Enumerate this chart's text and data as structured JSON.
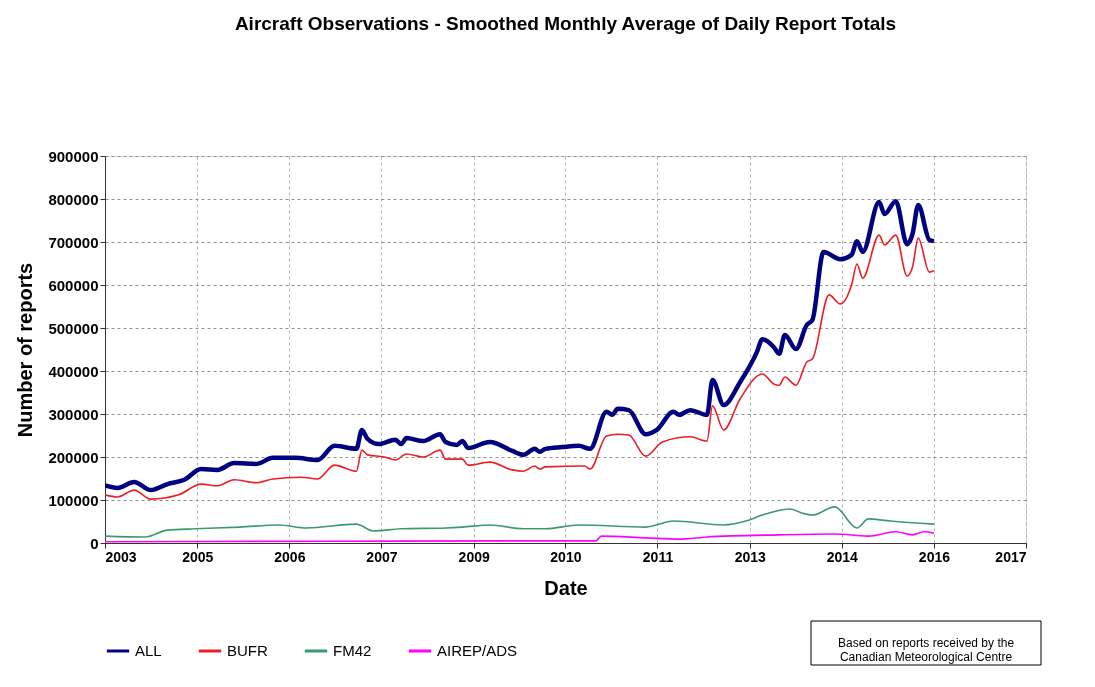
{
  "chart_data": {
    "type": "line",
    "title": "Aircraft Observations - Smoothed Monthly  Average of Daily Report Totals",
    "xlabel": "Date",
    "ylabel": "Number of reports",
    "xlim": [
      "2003-08-25",
      "2017-06-13"
    ],
    "xticks": [
      {
        "value": "2003-08-25",
        "label": "2003"
      },
      {
        "value": "2005-01-11",
        "label": "2005"
      },
      {
        "value": "2006-05-30",
        "label": "2006"
      },
      {
        "value": "2007-10-16",
        "label": "2007"
      },
      {
        "value": "2009-03-04",
        "label": "2009"
      },
      {
        "value": "2010-07-19",
        "label": "2010"
      },
      {
        "value": "2011-12-05",
        "label": "2011"
      },
      {
        "value": "2013-04-23",
        "label": "2013"
      },
      {
        "value": "2014-09-09",
        "label": "2014"
      },
      {
        "value": "2016-01-26",
        "label": "2016"
      },
      {
        "value": "2017-06-13",
        "label": "2017"
      }
    ],
    "ylim": [
      0,
      900000
    ],
    "yticks": [
      0,
      100000,
      200000,
      300000,
      400000,
      500000,
      600000,
      700000,
      800000,
      900000
    ],
    "grid": true,
    "legend": "bottom",
    "line_style": "solid",
    "marker": "none",
    "annotations": [
      "Based on reports received  by the\nCanadian Meteorological Centre"
    ],
    "series": [
      {
        "name": "ALL",
        "color": "#000080",
        "x": [
          "2003-08-25",
          "2003-11",
          "2004-02",
          "2004-05",
          "2004-08",
          "2004-11",
          "2005-02",
          "2005-05",
          "2005-08",
          "2005-12",
          "2006-03",
          "2006-07",
          "2006-11",
          "2007-02",
          "2007-06",
          "2007-07",
          "2007-08",
          "2007-10",
          "2008-01",
          "2008-02",
          "2008-03",
          "2008-06",
          "2008-09",
          "2008-10",
          "2008-12",
          "2009-01",
          "2009-02",
          "2009-06",
          "2009-10",
          "2009-12",
          "2010-02",
          "2010-03",
          "2010-04",
          "2010-07",
          "2010-10",
          "2010-12",
          "2011-03",
          "2011-04",
          "2011-05",
          "2011-07",
          "2011-10",
          "2011-12",
          "2012-03",
          "2012-04",
          "2012-06",
          "2012-09",
          "2012-10",
          "2012-12",
          "2013-03",
          "2013-06",
          "2013-07",
          "2013-09",
          "2013-10",
          "2013-11",
          "2014-01",
          "2014-03",
          "2014-04",
          "2014-06",
          "2014-09",
          "2014-11",
          "2014-12",
          "2015-01",
          "2015-04",
          "2015-05",
          "2015-07",
          "2015-09",
          "2015-10",
          "2015-11",
          "2016-01",
          "2016-01-26"
        ],
        "values": [
          134000,
          128000,
          142000,
          123000,
          137000,
          147000,
          172000,
          170000,
          186000,
          184000,
          198000,
          198000,
          193000,
          226000,
          219000,
          263000,
          242000,
          230000,
          240000,
          230000,
          244000,
          237000,
          253000,
          235000,
          228000,
          237000,
          221000,
          235000,
          214000,
          205000,
          219000,
          212000,
          219000,
          223000,
          226000,
          219000,
          305000,
          298000,
          312000,
          309000,
          253000,
          263000,
          305000,
          298000,
          309000,
          298000,
          379000,
          321000,
          374000,
          444000,
          474000,
          456000,
          440000,
          484000,
          451000,
          507000,
          519000,
          677000,
          660000,
          670000,
          702000,
          677000,
          793000,
          765000,
          795000,
          695000,
          719000,
          786000,
          705000,
          702000
        ]
      },
      {
        "name": "BUFR",
        "color": "#ee1c25",
        "x": [
          "2003-08-25",
          "2003-11",
          "2004-02",
          "2004-05",
          "2004-10",
          "2005-02",
          "2005-05",
          "2005-08",
          "2005-12",
          "2006-03",
          "2006-08",
          "2006-11",
          "2007-02",
          "2007-06",
          "2007-07",
          "2007-08",
          "2007-11",
          "2008-01",
          "2008-03",
          "2008-06",
          "2008-09",
          "2008-10",
          "2009-01",
          "2009-02",
          "2009-06",
          "2009-10",
          "2009-12",
          "2010-02",
          "2010-03",
          "2010-04",
          "2010-11",
          "2010-12",
          "2011-03",
          "2011-05",
          "2011-07",
          "2011-10",
          "2012-01",
          "2012-06",
          "2012-09",
          "2012-10",
          "2012-12",
          "2013-03",
          "2013-07",
          "2013-09",
          "2013-10",
          "2013-11",
          "2014-01",
          "2014-03",
          "2014-04",
          "2014-07",
          "2014-09",
          "2014-11",
          "2014-12",
          "2015-01",
          "2015-04",
          "2015-05",
          "2015-07",
          "2015-09",
          "2015-10",
          "2015-11",
          "2016-01",
          "2016-01-26"
        ],
        "values": [
          112000,
          107000,
          123000,
          102000,
          112000,
          137000,
          133000,
          147000,
          140000,
          149000,
          153000,
          149000,
          181000,
          167000,
          216000,
          205000,
          200000,
          193000,
          207000,
          200000,
          216000,
          195000,
          195000,
          181000,
          188000,
          170000,
          167000,
          179000,
          172000,
          177000,
          179000,
          172000,
          249000,
          253000,
          251000,
          202000,
          235000,
          247000,
          237000,
          319000,
          263000,
          335000,
          393000,
          370000,
          367000,
          386000,
          367000,
          421000,
          428000,
          577000,
          556000,
          600000,
          649000,
          616000,
          716000,
          693000,
          716000,
          621000,
          642000,
          709000,
          630000,
          633000
        ]
      },
      {
        "name": "FM42",
        "color": "#3a9a6e",
        "x": [
          "2003-08-25",
          "2004-04",
          "2004-08",
          "2005-01",
          "2005-09",
          "2006-04",
          "2006-09",
          "2007-06",
          "2007-09",
          "2008-02",
          "2008-10",
          "2009-01",
          "2009-06",
          "2009-12",
          "2010-04",
          "2010-10",
          "2011-10",
          "2012-03",
          "2012-12",
          "2013-04",
          "2013-07",
          "2013-12",
          "2014-02",
          "2014-04",
          "2014-08",
          "2014-12",
          "2015-02",
          "2015-06",
          "2016-01-26"
        ],
        "values": [
          16000,
          14000,
          30000,
          33000,
          37000,
          42000,
          35000,
          44000,
          28000,
          33000,
          35000,
          37000,
          42000,
          33000,
          33000,
          42000,
          37000,
          51000,
          42000,
          51000,
          65000,
          79000,
          70000,
          65000,
          84000,
          35000,
          56000,
          51000,
          44000
        ]
      },
      {
        "name": "AIREP/ADS",
        "color": "#ff00ff",
        "x": [
          "2003-08-25",
          "2007-01",
          "2010-04",
          "2011-01",
          "2011-02",
          "2011-10",
          "2012-04",
          "2012-09",
          "2013-10",
          "2014-08",
          "2015-02",
          "2015-07",
          "2015-10",
          "2015-12",
          "2016-01-26"
        ],
        "values": [
          3000,
          4000,
          5000,
          5000,
          16000,
          12000,
          9000,
          14000,
          19000,
          21000,
          16000,
          26000,
          19000,
          26000,
          23000
        ]
      }
    ]
  }
}
